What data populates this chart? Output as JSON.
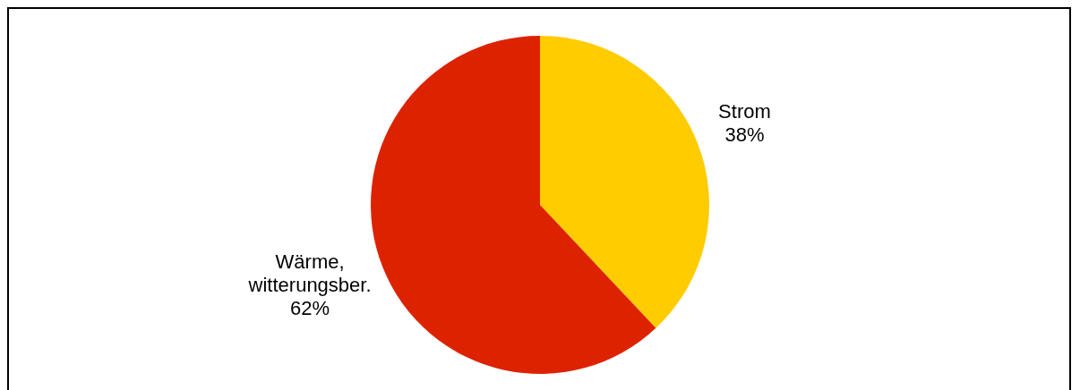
{
  "chart_data": {
    "type": "pie",
    "categories": [
      "Strom",
      "Wärme, witterungsber."
    ],
    "values": [
      38,
      62
    ],
    "colors": [
      "#ffcc00",
      "#dd2200"
    ],
    "value_labels": [
      "38%",
      "62%"
    ],
    "legend": false
  }
}
